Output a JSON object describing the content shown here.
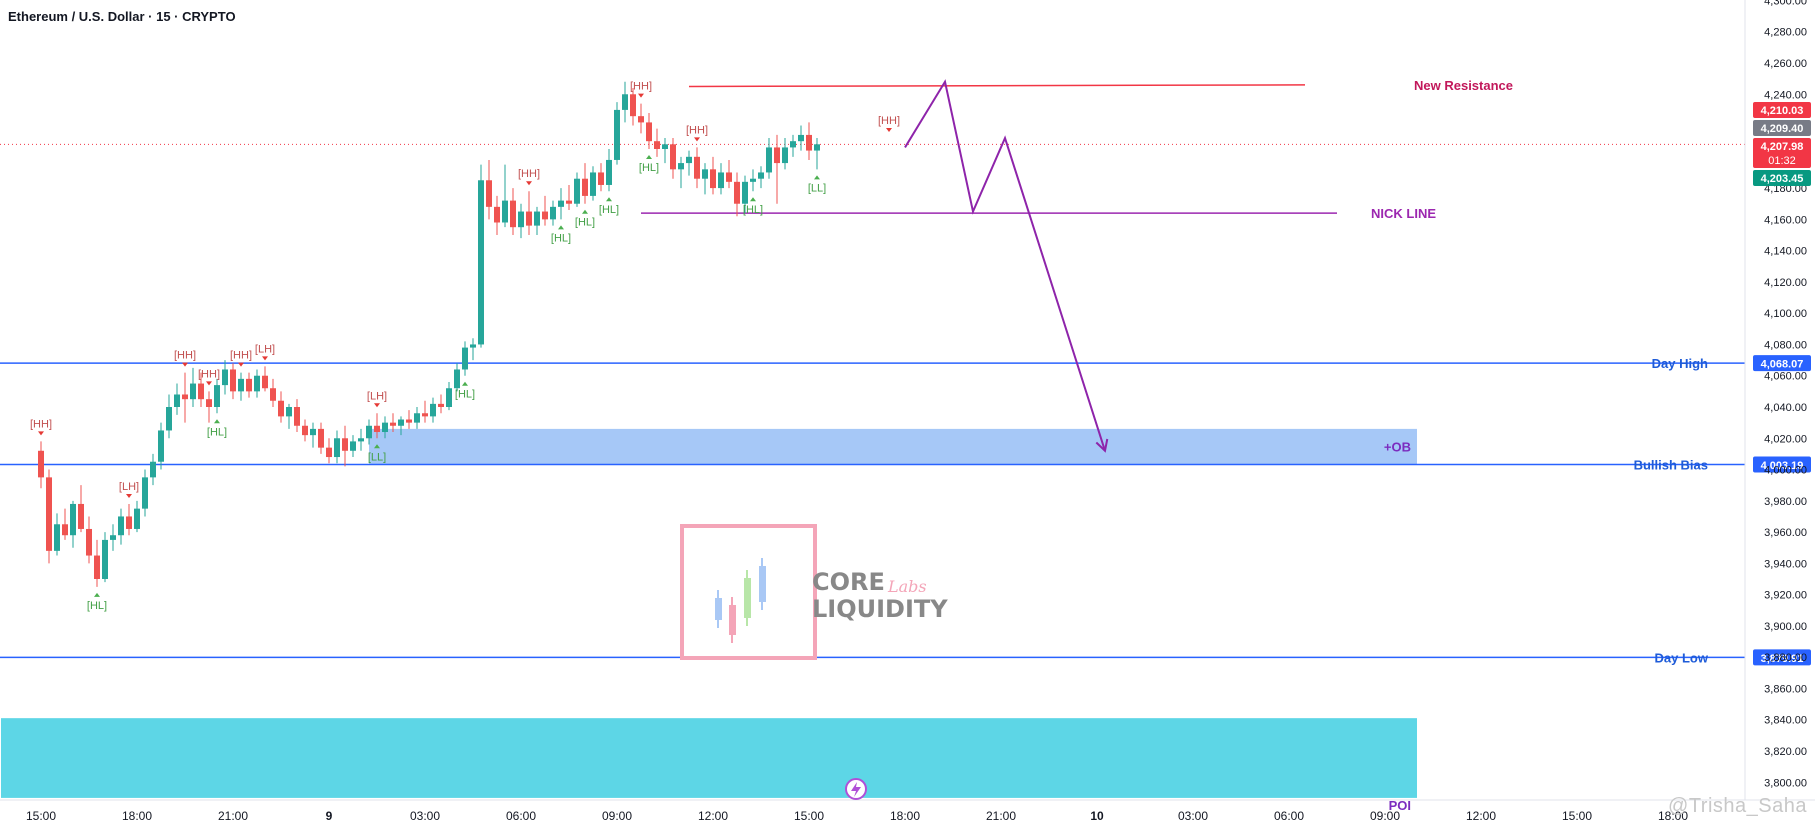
{
  "header": {
    "title": "Ethereum / U.S. Dollar · 15 · CRYPTO"
  },
  "watermark": "@Trisha_Saha",
  "logo": {
    "line1": "CORE",
    "line2": "LIQUIDITY",
    "script": "Labs"
  },
  "colors": {
    "up": "#26a69a",
    "down": "#ef5350",
    "level": "#2962ff",
    "resistance": "#f23645",
    "nick": "#9c27b0",
    "ob": "#90baf5",
    "poi": "#5dd6e6",
    "label_green": "#43a047",
    "label_red": "#c25050"
  },
  "chart_data": {
    "type": "candlestick",
    "symbol": "Ethereum / U.S. Dollar",
    "timeframe": "15",
    "ylim": [
      3790,
      4305
    ],
    "y_ticks": [
      "4,300.00",
      "4,280.00",
      "4,260.00",
      "4,240.00",
      "4,220.00",
      "4,200.00",
      "4,180.00",
      "4,160.00",
      "4,140.00",
      "4,120.00",
      "4,100.00",
      "4,080.00",
      "4,060.00",
      "4,040.00",
      "4,020.00",
      "4,000.00",
      "3,980.00",
      "3,960.00",
      "3,940.00",
      "3,920.00",
      "3,900.00",
      "3,880.00",
      "3,860.00",
      "3,840.00",
      "3,820.00",
      "3,800.00"
    ],
    "x_ticks": [
      {
        "t": 0,
        "label": "15:00"
      },
      {
        "t": 12,
        "label": "18:00"
      },
      {
        "t": 24,
        "label": "21:00"
      },
      {
        "t": 36,
        "label": "9"
      },
      {
        "t": 48,
        "label": "03:00"
      },
      {
        "t": 60,
        "label": "06:00"
      },
      {
        "t": 72,
        "label": "09:00"
      },
      {
        "t": 84,
        "label": "12:00"
      },
      {
        "t": 96,
        "label": "15:00"
      },
      {
        "t": 108,
        "label": "18:00"
      },
      {
        "t": 120,
        "label": "21:00"
      },
      {
        "t": 132,
        "label": "10"
      },
      {
        "t": 144,
        "label": "03:00"
      },
      {
        "t": 156,
        "label": "06:00"
      },
      {
        "t": 168,
        "label": "09:00"
      },
      {
        "t": 180,
        "label": "12:00"
      },
      {
        "t": 192,
        "label": "15:00"
      },
      {
        "t": 204,
        "label": "18:00"
      }
    ],
    "candles": [
      [
        4012,
        4018,
        3988,
        3995
      ],
      [
        3995,
        4000,
        3940,
        3948
      ],
      [
        3948,
        3972,
        3945,
        3965
      ],
      [
        3965,
        3975,
        3955,
        3958
      ],
      [
        3958,
        3980,
        3950,
        3978
      ],
      [
        3978,
        3990,
        3960,
        3962
      ],
      [
        3962,
        3970,
        3940,
        3945
      ],
      [
        3945,
        3955,
        3925,
        3930
      ],
      [
        3930,
        3960,
        3928,
        3955
      ],
      [
        3955,
        3965,
        3948,
        3958
      ],
      [
        3958,
        3975,
        3952,
        3970
      ],
      [
        3970,
        3978,
        3958,
        3962
      ],
      [
        3962,
        3980,
        3960,
        3975
      ],
      [
        3975,
        4000,
        3970,
        3995
      ],
      [
        3995,
        4010,
        3990,
        4005
      ],
      [
        4005,
        4030,
        4000,
        4025
      ],
      [
        4025,
        4048,
        4020,
        4040
      ],
      [
        4040,
        4055,
        4035,
        4048
      ],
      [
        4048,
        4062,
        4030,
        4045
      ],
      [
        4045,
        4065,
        4040,
        4055
      ],
      [
        4055,
        4062,
        4040,
        4045
      ],
      [
        4045,
        4050,
        4030,
        4040
      ],
      [
        4040,
        4058,
        4036,
        4054
      ],
      [
        4054,
        4070,
        4048,
        4064
      ],
      [
        4064,
        4068,
        4045,
        4050
      ],
      [
        4050,
        4062,
        4044,
        4058
      ],
      [
        4058,
        4062,
        4046,
        4050
      ],
      [
        4050,
        4064,
        4046,
        4060
      ],
      [
        4060,
        4066,
        4050,
        4052
      ],
      [
        4052,
        4058,
        4040,
        4044
      ],
      [
        4044,
        4050,
        4030,
        4034
      ],
      [
        4034,
        4042,
        4026,
        4040
      ],
      [
        4040,
        4045,
        4024,
        4028
      ],
      [
        4028,
        4032,
        4018,
        4022
      ],
      [
        4022,
        4030,
        4014,
        4026
      ],
      [
        4026,
        4030,
        4010,
        4014
      ],
      [
        4014,
        4020,
        4004,
        4008
      ],
      [
        4008,
        4025,
        4004,
        4020
      ],
      [
        4020,
        4028,
        4002,
        4012
      ],
      [
        4012,
        4022,
        4008,
        4018
      ],
      [
        4018,
        4026,
        4012,
        4020
      ],
      [
        4020,
        4032,
        4016,
        4028
      ],
      [
        4028,
        4036,
        4020,
        4024
      ],
      [
        4024,
        4034,
        4020,
        4030
      ],
      [
        4030,
        4036,
        4024,
        4028
      ],
      [
        4028,
        4034,
        4022,
        4032
      ],
      [
        4032,
        4038,
        4026,
        4030
      ],
      [
        4030,
        4040,
        4026,
        4036
      ],
      [
        4036,
        4044,
        4030,
        4034
      ],
      [
        4034,
        4046,
        4030,
        4042
      ],
      [
        4042,
        4048,
        4036,
        4040
      ],
      [
        4040,
        4056,
        4038,
        4052
      ],
      [
        4052,
        4068,
        4050,
        4064
      ],
      [
        4064,
        4082,
        4060,
        4078
      ],
      [
        4078,
        4084,
        4070,
        4080
      ],
      [
        4080,
        4195,
        4078,
        4185
      ],
      [
        4185,
        4198,
        4160,
        4168
      ],
      [
        4168,
        4175,
        4150,
        4158
      ],
      [
        4158,
        4195,
        4155,
        4172
      ],
      [
        4172,
        4180,
        4150,
        4155
      ],
      [
        4155,
        4170,
        4148,
        4165
      ],
      [
        4165,
        4178,
        4150,
        4156
      ],
      [
        4156,
        4168,
        4150,
        4165
      ],
      [
        4165,
        4175,
        4156,
        4160
      ],
      [
        4160,
        4172,
        4156,
        4168
      ],
      [
        4168,
        4180,
        4160,
        4172
      ],
      [
        4172,
        4182,
        4166,
        4170
      ],
      [
        4170,
        4190,
        4168,
        4186
      ],
      [
        4186,
        4196,
        4170,
        4175
      ],
      [
        4175,
        4194,
        4172,
        4190
      ],
      [
        4190,
        4196,
        4178,
        4182
      ],
      [
        4182,
        4205,
        4178,
        4198
      ],
      [
        4198,
        4235,
        4195,
        4230
      ],
      [
        4230,
        4248,
        4222,
        4240
      ],
      [
        4240,
        4244,
        4220,
        4226
      ],
      [
        4226,
        4234,
        4215,
        4222
      ],
      [
        4222,
        4228,
        4205,
        4210
      ],
      [
        4210,
        4218,
        4200,
        4205
      ],
      [
        4205,
        4212,
        4196,
        4208
      ],
      [
        4208,
        4212,
        4186,
        4192
      ],
      [
        4192,
        4200,
        4180,
        4196
      ],
      [
        4196,
        4204,
        4188,
        4200
      ],
      [
        4200,
        4206,
        4180,
        4186
      ],
      [
        4186,
        4196,
        4176,
        4192
      ],
      [
        4192,
        4200,
        4176,
        4180
      ],
      [
        4180,
        4196,
        4176,
        4190
      ],
      [
        4190,
        4198,
        4180,
        4184
      ],
      [
        4184,
        4190,
        4162,
        4170
      ],
      [
        4170,
        4188,
        4164,
        4184
      ],
      [
        4184,
        4192,
        4178,
        4186
      ],
      [
        4186,
        4194,
        4180,
        4190
      ],
      [
        4190,
        4212,
        4186,
        4206
      ],
      [
        4206,
        4214,
        4170,
        4196
      ],
      [
        4196,
        4212,
        4192,
        4206
      ],
      [
        4206,
        4214,
        4200,
        4210
      ],
      [
        4210,
        4220,
        4204,
        4214
      ],
      [
        4214,
        4222,
        4198,
        4204
      ],
      [
        4204,
        4212,
        4192,
        4208
      ]
    ],
    "structure_labels": [
      {
        "t": 0,
        "label": "[HH]",
        "side": "above",
        "color": "red"
      },
      {
        "t": 11,
        "label": "[LH]",
        "side": "above",
        "color": "red"
      },
      {
        "t": 7,
        "label": "[HL]",
        "side": "below",
        "color": "green"
      },
      {
        "t": 18,
        "label": "[HH]",
        "side": "above",
        "color": "red"
      },
      {
        "t": 21,
        "label": "[HH]",
        "side": "above",
        "color": "red"
      },
      {
        "t": 25,
        "label": "[HH]",
        "side": "above",
        "color": "red"
      },
      {
        "t": 28,
        "label": "[LH]",
        "side": "above",
        "color": "red"
      },
      {
        "t": 22,
        "label": "[HL]",
        "side": "below",
        "color": "green"
      },
      {
        "t": 42,
        "label": "[LH]",
        "side": "above",
        "color": "red"
      },
      {
        "t": 42,
        "label": "[LL]",
        "side": "below",
        "color": "green"
      },
      {
        "t": 53,
        "label": "[HL]",
        "side": "below",
        "color": "green"
      },
      {
        "t": 61,
        "label": "[HH]",
        "side": "above",
        "color": "red"
      },
      {
        "t": 65,
        "label": "[HL]",
        "side": "below",
        "color": "green"
      },
      {
        "t": 68,
        "label": "[HL]",
        "side": "below",
        "color": "green"
      },
      {
        "t": 71,
        "label": "[HL]",
        "side": "below",
        "color": "green"
      },
      {
        "t": 75,
        "label": "[HH]",
        "side": "above",
        "color": "red"
      },
      {
        "t": 76,
        "label": "[HL]",
        "side": "below",
        "color": "green"
      },
      {
        "t": 82,
        "label": "[HH]",
        "side": "above",
        "color": "red"
      },
      {
        "t": 89,
        "label": "[HL]",
        "side": "below",
        "color": "green"
      },
      {
        "t": 97,
        "label": "[LL]",
        "side": "below",
        "color": "green"
      },
      {
        "t": 106,
        "label": "[HH]",
        "side": "above",
        "color": "red"
      }
    ],
    "levels": [
      {
        "name": "Day High",
        "price": 4068.07,
        "label": "4,068.07"
      },
      {
        "name": "Bullish Bias",
        "price": 4003.19,
        "label": "4,003.19"
      },
      {
        "name": "Day Low",
        "price": 3879.91,
        "label": "3,879.91"
      }
    ],
    "resistance": {
      "name": "New Resistance",
      "price_start": 4245,
      "price_end": 4246,
      "t_start": 81,
      "t_end": 158
    },
    "nick_line": {
      "name": "NICK LINE",
      "price": 4164,
      "t_start": 75,
      "t_end": 162
    },
    "zones": [
      {
        "name": "+OB",
        "low": 4003.19,
        "high": 4026,
        "t_start": 41,
        "t_end": 172
      },
      {
        "name": "POI",
        "low": 3790,
        "high": 3841,
        "t_start": -5,
        "t_end": 172
      }
    ],
    "projection": [
      [
        108,
        4206
      ],
      [
        113,
        4248
      ],
      [
        116.5,
        4165
      ],
      [
        120.5,
        4212
      ],
      [
        133,
        4012
      ]
    ],
    "price_tags": [
      {
        "label": "4,210.03",
        "price": 4210.03,
        "color": "#f23645"
      },
      {
        "label": "4,209.40",
        "price": 4209.4,
        "color": "#787b86"
      },
      {
        "label": "4,207.98",
        "price": 4207.98,
        "color": "#f23645",
        "sub": "01:32"
      },
      {
        "label": "4,203.45",
        "price": 4203.45,
        "color": "#089981"
      }
    ],
    "current_price": 4207.98
  }
}
